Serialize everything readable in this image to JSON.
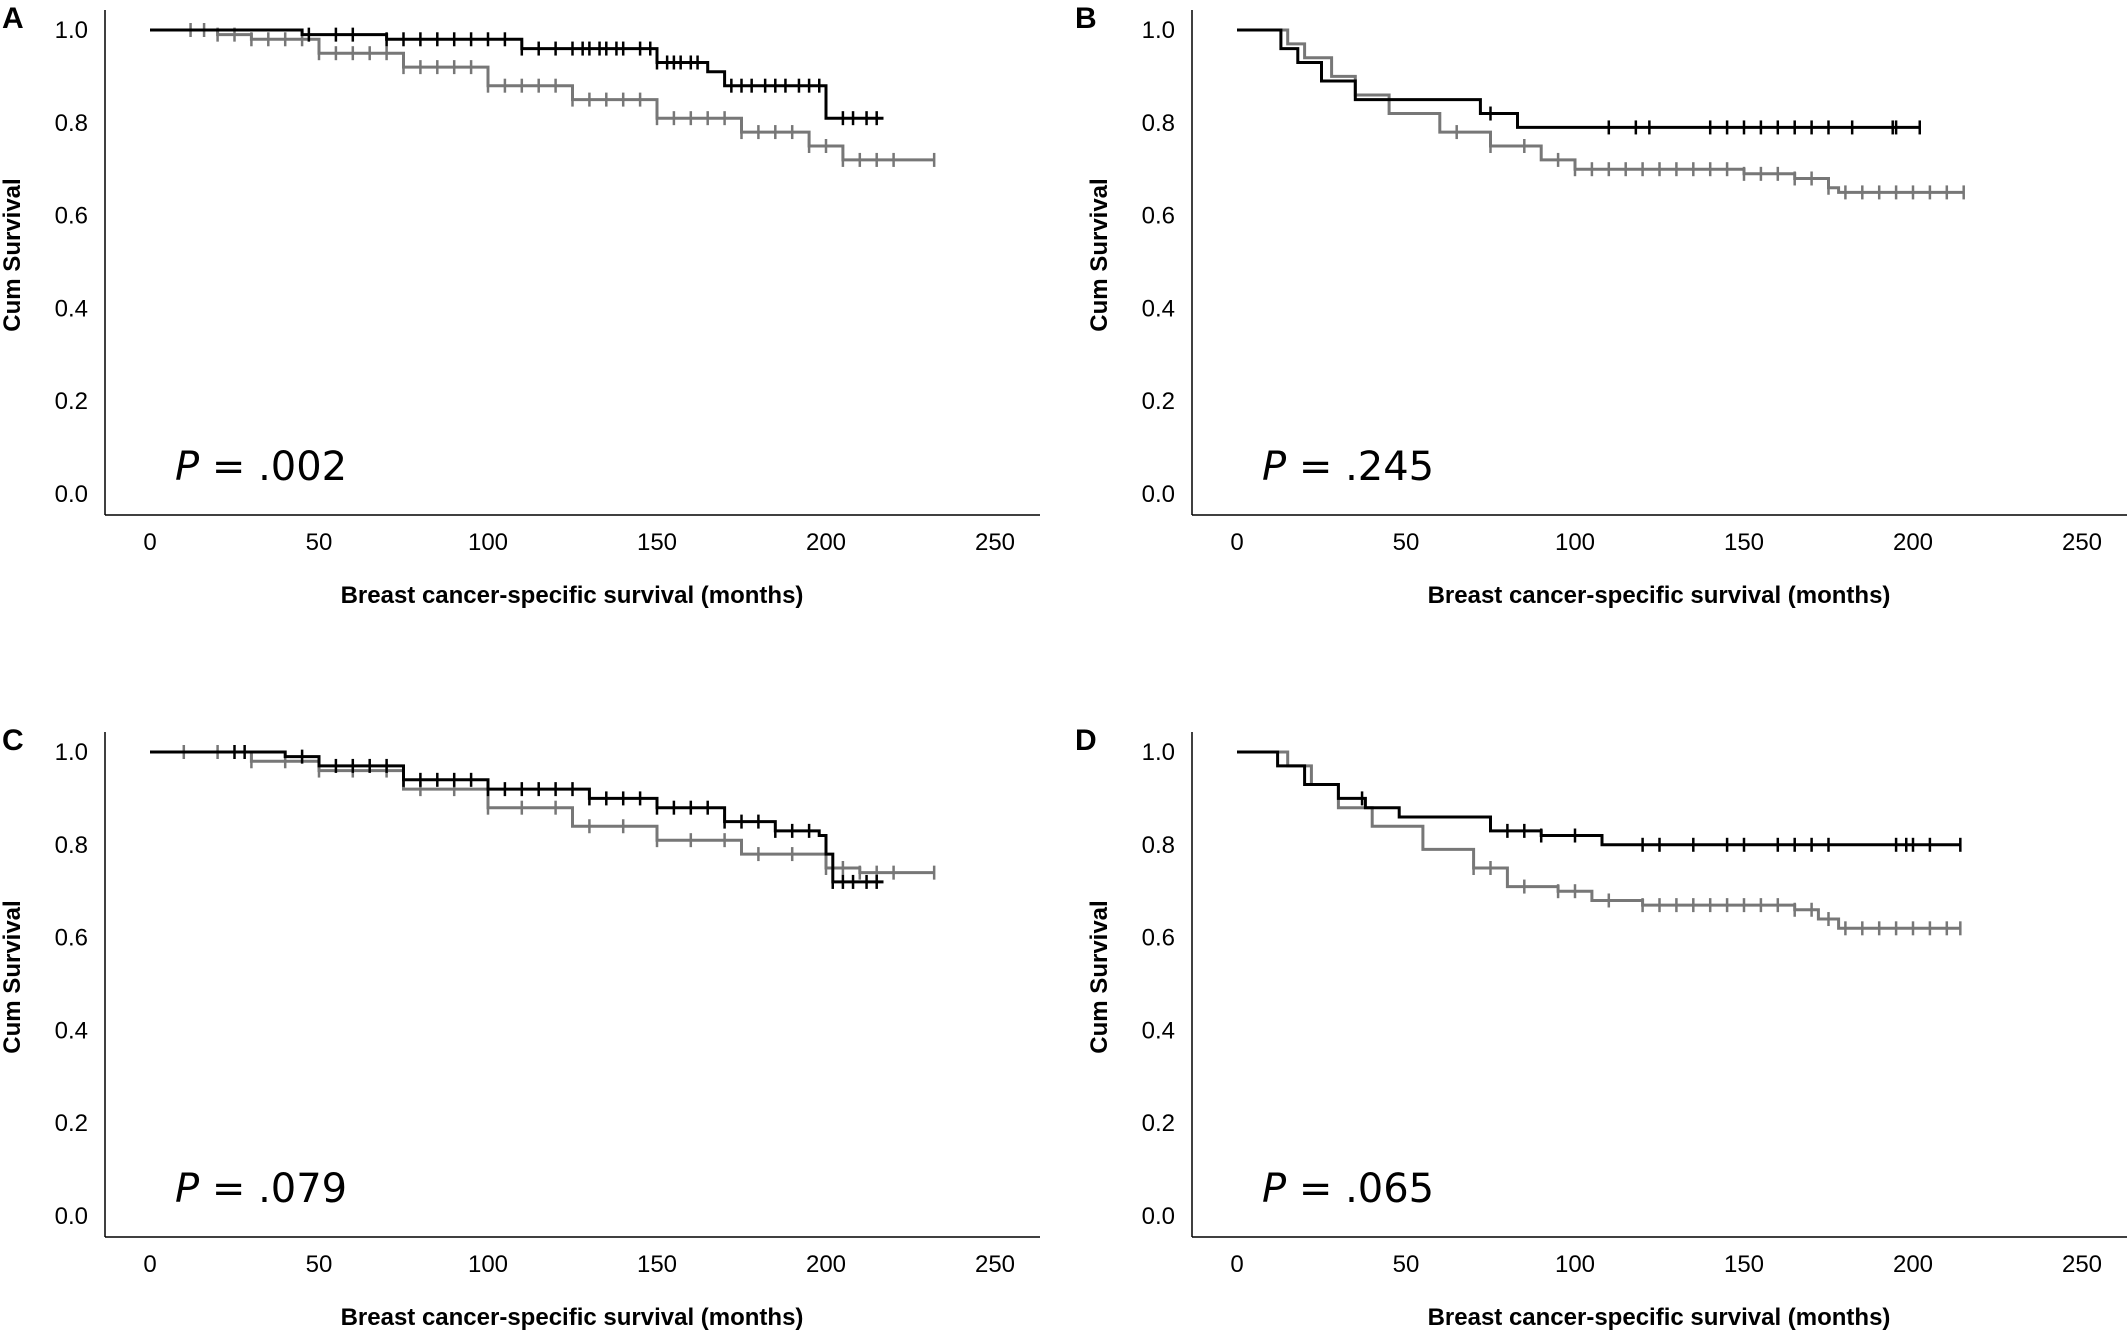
{
  "chart_data": [
    {
      "panel_label": "A",
      "type": "line",
      "ylabel": "Cum Survival",
      "xlabel": "Breast cancer-specific survival (months)",
      "xlim": [
        0,
        250
      ],
      "ylim": [
        0.0,
        1.0
      ],
      "xticks": [
        "0",
        "50",
        "100",
        "150",
        "200",
        "250"
      ],
      "yticks": [
        "0.0",
        "0.2",
        "0.4",
        "0.6",
        "0.8",
        "1.0"
      ],
      "p_label": "P",
      "p_value": "= .002",
      "series": [
        {
          "color": "#000000",
          "points": [
            [
              0,
              1.0
            ],
            [
              40,
              1.0
            ],
            [
              45,
              0.99
            ],
            [
              70,
              0.98
            ],
            [
              110,
              0.96
            ],
            [
              150,
              0.93
            ],
            [
              165,
              0.91
            ],
            [
              170,
              0.88
            ],
            [
              200,
              0.88
            ],
            [
              200,
              0.81
            ],
            [
              217,
              0.81
            ]
          ],
          "censor_x": [
            47,
            55,
            60,
            70,
            75,
            80,
            85,
            90,
            95,
            100,
            105,
            110,
            115,
            120,
            125,
            128,
            130,
            133,
            135,
            138,
            140,
            145,
            148,
            150,
            153,
            155,
            157,
            160,
            162,
            172,
            175,
            178,
            182,
            185,
            188,
            192,
            195,
            198,
            205,
            208,
            212,
            215
          ]
        },
        {
          "color": "#777777",
          "points": [
            [
              0,
              1.0
            ],
            [
              10,
              1.0
            ],
            [
              20,
              0.99
            ],
            [
              30,
              0.98
            ],
            [
              50,
              0.95
            ],
            [
              75,
              0.92
            ],
            [
              100,
              0.88
            ],
            [
              125,
              0.85
            ],
            [
              150,
              0.81
            ],
            [
              175,
              0.78
            ],
            [
              195,
              0.75
            ],
            [
              205,
              0.72
            ],
            [
              232,
              0.72
            ]
          ],
          "censor_x": [
            12,
            16,
            20,
            25,
            30,
            35,
            40,
            45,
            50,
            55,
            60,
            65,
            70,
            75,
            80,
            85,
            90,
            95,
            100,
            105,
            110,
            115,
            120,
            125,
            130,
            135,
            140,
            145,
            150,
            155,
            160,
            165,
            170,
            175,
            180,
            185,
            190,
            195,
            200,
            205,
            210,
            215,
            220,
            232
          ]
        }
      ]
    },
    {
      "panel_label": "B",
      "type": "line",
      "ylabel": "Cum Survival",
      "xlabel": "Breast cancer-specific survival (months)",
      "xlim": [
        0,
        250
      ],
      "ylim": [
        0.0,
        1.0
      ],
      "xticks": [
        "0",
        "50",
        "100",
        "150",
        "200",
        "250"
      ],
      "yticks": [
        "0.0",
        "0.2",
        "0.4",
        "0.6",
        "0.8",
        "1.0"
      ],
      "p_label": "P",
      "p_value": "= .245",
      "series": [
        {
          "color": "#000000",
          "points": [
            [
              0,
              1.0
            ],
            [
              13,
              1.0
            ],
            [
              13,
              0.96
            ],
            [
              18,
              0.96
            ],
            [
              18,
              0.93
            ],
            [
              25,
              0.93
            ],
            [
              25,
              0.89
            ],
            [
              35,
              0.89
            ],
            [
              35,
              0.85
            ],
            [
              72,
              0.85
            ],
            [
              72,
              0.82
            ],
            [
              83,
              0.82
            ],
            [
              83,
              0.79
            ],
            [
              202,
              0.79
            ]
          ],
          "censor_x": [
            75,
            110,
            118,
            122,
            140,
            145,
            150,
            155,
            160,
            165,
            170,
            175,
            182,
            194,
            195,
            202
          ]
        },
        {
          "color": "#777777",
          "points": [
            [
              0,
              1.0
            ],
            [
              10,
              1.0
            ],
            [
              15,
              0.97
            ],
            [
              20,
              0.94
            ],
            [
              28,
              0.9
            ],
            [
              35,
              0.86
            ],
            [
              45,
              0.82
            ],
            [
              60,
              0.78
            ],
            [
              75,
              0.75
            ],
            [
              90,
              0.72
            ],
            [
              100,
              0.7
            ],
            [
              130,
              0.7
            ],
            [
              150,
              0.69
            ],
            [
              165,
              0.68
            ],
            [
              175,
              0.66
            ],
            [
              178,
              0.65
            ],
            [
              215,
              0.65
            ]
          ],
          "censor_x": [
            65,
            75,
            85,
            95,
            100,
            105,
            110,
            115,
            120,
            125,
            130,
            135,
            140,
            145,
            150,
            155,
            160,
            165,
            170,
            175,
            180,
            185,
            190,
            195,
            200,
            205,
            210,
            215
          ]
        }
      ]
    },
    {
      "panel_label": "C",
      "type": "line",
      "ylabel": "Cum Survival",
      "xlabel": "Breast cancer-specific survival (months)",
      "xlim": [
        0,
        250
      ],
      "ylim": [
        0.0,
        1.0
      ],
      "xticks": [
        "0",
        "50",
        "100",
        "150",
        "200",
        "250"
      ],
      "yticks": [
        "0.0",
        "0.2",
        "0.4",
        "0.6",
        "0.8",
        "1.0"
      ],
      "p_label": "P",
      "p_value": "= .079",
      "series": [
        {
          "color": "#000000",
          "points": [
            [
              0,
              1.0
            ],
            [
              40,
              0.99
            ],
            [
              50,
              0.97
            ],
            [
              75,
              0.94
            ],
            [
              100,
              0.92
            ],
            [
              130,
              0.9
            ],
            [
              150,
              0.88
            ],
            [
              170,
              0.85
            ],
            [
              185,
              0.83
            ],
            [
              198,
              0.82
            ],
            [
              200,
              0.78
            ],
            [
              202,
              0.72
            ],
            [
              217,
              0.72
            ]
          ],
          "censor_x": [
            25,
            28,
            45,
            55,
            60,
            65,
            70,
            75,
            80,
            85,
            90,
            95,
            100,
            105,
            110,
            115,
            120,
            125,
            130,
            135,
            140,
            145,
            150,
            155,
            160,
            165,
            170,
            175,
            180,
            185,
            190,
            195,
            202,
            205,
            208,
            212,
            215
          ]
        },
        {
          "color": "#777777",
          "points": [
            [
              0,
              1.0
            ],
            [
              10,
              1.0
            ],
            [
              30,
              0.98
            ],
            [
              50,
              0.96
            ],
            [
              75,
              0.92
            ],
            [
              100,
              0.88
            ],
            [
              125,
              0.84
            ],
            [
              150,
              0.81
            ],
            [
              175,
              0.78
            ],
            [
              200,
              0.75
            ],
            [
              210,
              0.74
            ],
            [
              232,
              0.74
            ]
          ],
          "censor_x": [
            10,
            20,
            30,
            40,
            50,
            60,
            70,
            80,
            90,
            100,
            110,
            120,
            130,
            140,
            150,
            160,
            170,
            180,
            190,
            200,
            205,
            210,
            215,
            220,
            232
          ]
        }
      ]
    },
    {
      "panel_label": "D",
      "type": "line",
      "ylabel": "Cum Survival",
      "xlabel": "Breast cancer-specific survival (months)",
      "xlim": [
        0,
        250
      ],
      "ylim": [
        0.0,
        1.0
      ],
      "xticks": [
        "0",
        "50",
        "100",
        "150",
        "200",
        "250"
      ],
      "yticks": [
        "0.0",
        "0.2",
        "0.4",
        "0.6",
        "0.8",
        "1.0"
      ],
      "p_label": "P",
      "p_value": "= .065",
      "series": [
        {
          "color": "#000000",
          "points": [
            [
              0,
              1.0
            ],
            [
              12,
              1.0
            ],
            [
              12,
              0.97
            ],
            [
              20,
              0.97
            ],
            [
              20,
              0.93
            ],
            [
              30,
              0.93
            ],
            [
              30,
              0.9
            ],
            [
              38,
              0.9
            ],
            [
              38,
              0.88
            ],
            [
              48,
              0.88
            ],
            [
              48,
              0.86
            ],
            [
              75,
              0.86
            ],
            [
              75,
              0.83
            ],
            [
              90,
              0.83
            ],
            [
              90,
              0.82
            ],
            [
              108,
              0.82
            ],
            [
              108,
              0.8
            ],
            [
              214,
              0.8
            ]
          ],
          "censor_x": [
            37,
            80,
            85,
            90,
            100,
            120,
            125,
            135,
            145,
            150,
            160,
            165,
            170,
            175,
            195,
            198,
            200,
            205,
            214
          ]
        },
        {
          "color": "#777777",
          "points": [
            [
              0,
              1.0
            ],
            [
              8,
              1.0
            ],
            [
              15,
              0.97
            ],
            [
              22,
              0.93
            ],
            [
              30,
              0.88
            ],
            [
              40,
              0.84
            ],
            [
              55,
              0.79
            ],
            [
              70,
              0.75
            ],
            [
              80,
              0.71
            ],
            [
              95,
              0.7
            ],
            [
              105,
              0.68
            ],
            [
              120,
              0.67
            ],
            [
              150,
              0.67
            ],
            [
              165,
              0.66
            ],
            [
              172,
              0.64
            ],
            [
              178,
              0.62
            ],
            [
              214,
              0.62
            ]
          ],
          "censor_x": [
            70,
            75,
            85,
            95,
            100,
            110,
            120,
            125,
            130,
            135,
            140,
            145,
            150,
            155,
            160,
            165,
            170,
            175,
            180,
            185,
            190,
            195,
            200,
            205,
            210,
            214
          ]
        }
      ]
    }
  ]
}
